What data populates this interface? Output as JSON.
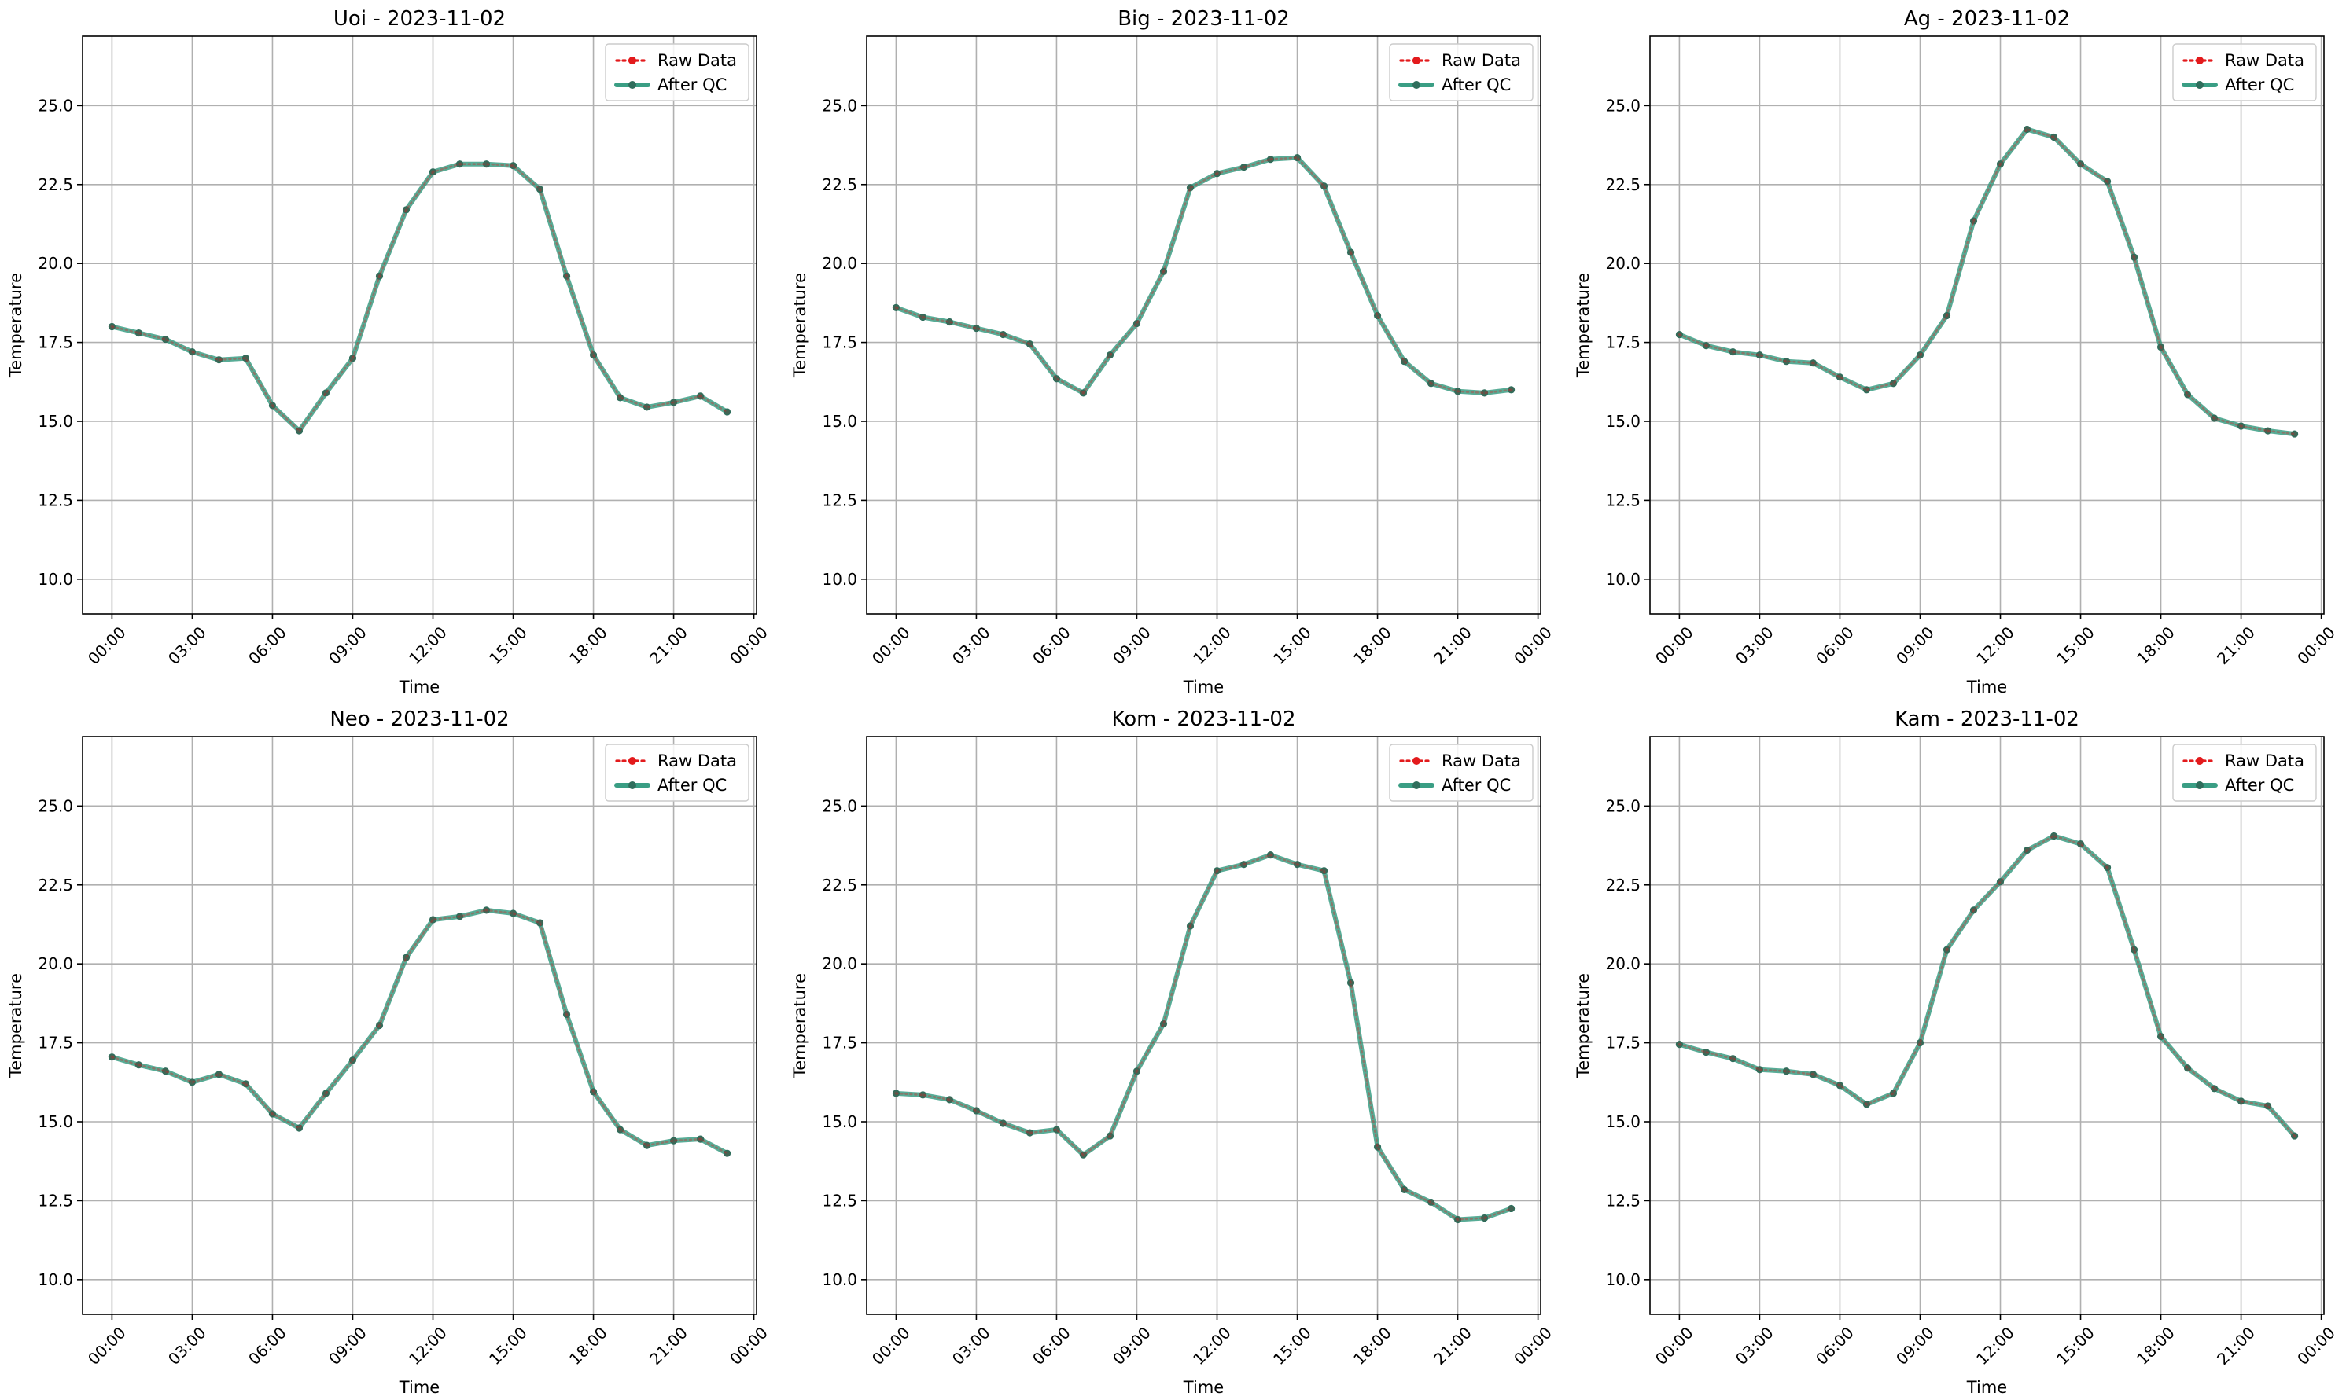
{
  "colors": {
    "raw": "#e31a1c",
    "qc": "#3a9e84",
    "qc_marker": "#2f6e5c",
    "grid": "#b0b0b0",
    "axis": "#000000"
  },
  "chart_data": [
    {
      "type": "line",
      "title": "Uoi - 2023-11-02",
      "xlabel": "Time",
      "ylabel": "Temperature",
      "x_unit": "hour",
      "xlim": [
        -1.1,
        24.1
      ],
      "ylim": [
        8.9,
        27.2
      ],
      "grid": true,
      "legend": "top-right",
      "x_ticks": [
        0,
        3,
        6,
        9,
        12,
        15,
        18,
        21,
        24
      ],
      "x_tick_labels": [
        "00:00",
        "03:00",
        "06:00",
        "09:00",
        "12:00",
        "15:00",
        "18:00",
        "21:00",
        "00:00"
      ],
      "y_ticks": [
        10.0,
        12.5,
        15.0,
        17.5,
        20.0,
        22.5,
        25.0
      ],
      "y_tick_labels": [
        "10.0",
        "12.5",
        "15.0",
        "17.5",
        "20.0",
        "22.5",
        "25.0"
      ],
      "x": [
        0,
        1,
        2,
        3,
        4,
        5,
        6,
        7,
        8,
        9,
        10,
        11,
        12,
        13,
        14,
        15,
        16,
        17,
        18,
        19,
        20,
        21,
        22,
        23
      ],
      "series": [
        {
          "name": "Raw Data",
          "style": "dotted",
          "values": [
            18.0,
            17.8,
            17.6,
            17.2,
            16.95,
            17.0,
            15.5,
            14.7,
            15.9,
            17.0,
            19.6,
            21.7,
            22.9,
            23.15,
            23.15,
            23.1,
            22.35,
            19.6,
            17.1,
            15.75,
            15.45,
            15.6,
            15.8,
            15.3
          ]
        },
        {
          "name": "After QC",
          "style": "solid",
          "values": [
            18.0,
            17.8,
            17.6,
            17.2,
            16.95,
            17.0,
            15.5,
            14.7,
            15.9,
            17.0,
            19.6,
            21.7,
            22.9,
            23.15,
            23.15,
            23.1,
            22.35,
            19.6,
            17.1,
            15.75,
            15.45,
            15.6,
            15.8,
            15.3
          ]
        }
      ]
    },
    {
      "type": "line",
      "title": "Big - 2023-11-02",
      "xlabel": "Time",
      "ylabel": "Temperature",
      "x_unit": "hour",
      "xlim": [
        -1.1,
        24.1
      ],
      "ylim": [
        8.9,
        27.2
      ],
      "grid": true,
      "legend": "top-right",
      "x_ticks": [
        0,
        3,
        6,
        9,
        12,
        15,
        18,
        21,
        24
      ],
      "x_tick_labels": [
        "00:00",
        "03:00",
        "06:00",
        "09:00",
        "12:00",
        "15:00",
        "18:00",
        "21:00",
        "00:00"
      ],
      "y_ticks": [
        10.0,
        12.5,
        15.0,
        17.5,
        20.0,
        22.5,
        25.0
      ],
      "y_tick_labels": [
        "10.0",
        "12.5",
        "15.0",
        "17.5",
        "20.0",
        "22.5",
        "25.0"
      ],
      "x": [
        0,
        1,
        2,
        3,
        4,
        5,
        6,
        7,
        8,
        9,
        10,
        11,
        12,
        13,
        14,
        15,
        16,
        17,
        18,
        19,
        20,
        21,
        22,
        23
      ],
      "series": [
        {
          "name": "Raw Data",
          "style": "dotted",
          "values": [
            18.6,
            18.3,
            18.15,
            17.95,
            17.75,
            17.45,
            16.35,
            15.9,
            17.1,
            18.1,
            19.75,
            22.4,
            22.85,
            23.05,
            23.3,
            23.35,
            22.45,
            20.35,
            18.35,
            16.9,
            16.2,
            15.95,
            15.9,
            16.0
          ]
        },
        {
          "name": "After QC",
          "style": "solid",
          "values": [
            18.6,
            18.3,
            18.15,
            17.95,
            17.75,
            17.45,
            16.35,
            15.9,
            17.1,
            18.1,
            19.75,
            22.4,
            22.85,
            23.05,
            23.3,
            23.35,
            22.45,
            20.35,
            18.35,
            16.9,
            16.2,
            15.95,
            15.9,
            16.0
          ]
        }
      ]
    },
    {
      "type": "line",
      "title": "Ag - 2023-11-02",
      "xlabel": "Time",
      "ylabel": "Temperature",
      "x_unit": "hour",
      "xlim": [
        -1.1,
        24.1
      ],
      "ylim": [
        8.9,
        27.2
      ],
      "grid": true,
      "legend": "top-right",
      "x_ticks": [
        0,
        3,
        6,
        9,
        12,
        15,
        18,
        21,
        24
      ],
      "x_tick_labels": [
        "00:00",
        "03:00",
        "06:00",
        "09:00",
        "12:00",
        "15:00",
        "18:00",
        "21:00",
        "00:00"
      ],
      "y_ticks": [
        10.0,
        12.5,
        15.0,
        17.5,
        20.0,
        22.5,
        25.0
      ],
      "y_tick_labels": [
        "10.0",
        "12.5",
        "15.0",
        "17.5",
        "20.0",
        "22.5",
        "25.0"
      ],
      "x": [
        0,
        1,
        2,
        3,
        4,
        5,
        6,
        7,
        8,
        9,
        10,
        11,
        12,
        13,
        14,
        15,
        16,
        17,
        18,
        19,
        20,
        21,
        22,
        23
      ],
      "series": [
        {
          "name": "Raw Data",
          "style": "dotted",
          "values": [
            17.75,
            17.4,
            17.2,
            17.1,
            16.9,
            16.85,
            16.4,
            16.0,
            16.2,
            17.1,
            18.35,
            21.35,
            23.15,
            24.25,
            24.0,
            23.15,
            22.6,
            20.2,
            17.35,
            15.85,
            15.1,
            14.85,
            14.7,
            14.6
          ]
        },
        {
          "name": "After QC",
          "style": "solid",
          "values": [
            17.75,
            17.4,
            17.2,
            17.1,
            16.9,
            16.85,
            16.4,
            16.0,
            16.2,
            17.1,
            18.35,
            21.35,
            23.15,
            24.25,
            24.0,
            23.15,
            22.6,
            20.2,
            17.35,
            15.85,
            15.1,
            14.85,
            14.7,
            14.6
          ]
        }
      ]
    },
    {
      "type": "line",
      "title": "Neo - 2023-11-02",
      "xlabel": "Time",
      "ylabel": "Temperature",
      "x_unit": "hour",
      "xlim": [
        -1.1,
        24.1
      ],
      "ylim": [
        8.9,
        27.2
      ],
      "grid": true,
      "legend": "top-right",
      "x_ticks": [
        0,
        3,
        6,
        9,
        12,
        15,
        18,
        21,
        24
      ],
      "x_tick_labels": [
        "00:00",
        "03:00",
        "06:00",
        "09:00",
        "12:00",
        "15:00",
        "18:00",
        "21:00",
        "00:00"
      ],
      "y_ticks": [
        10.0,
        12.5,
        15.0,
        17.5,
        20.0,
        22.5,
        25.0
      ],
      "y_tick_labels": [
        "10.0",
        "12.5",
        "15.0",
        "17.5",
        "20.0",
        "22.5",
        "25.0"
      ],
      "x": [
        0,
        1,
        2,
        3,
        4,
        5,
        6,
        7,
        8,
        9,
        10,
        11,
        12,
        13,
        14,
        15,
        16,
        17,
        18,
        19,
        20,
        21,
        22,
        23
      ],
      "series": [
        {
          "name": "Raw Data",
          "style": "dotted",
          "values": [
            17.05,
            16.8,
            16.6,
            16.25,
            16.5,
            16.2,
            15.25,
            14.8,
            15.9,
            16.95,
            18.05,
            20.2,
            21.4,
            21.5,
            21.7,
            21.6,
            21.3,
            18.4,
            15.95,
            14.75,
            14.25,
            14.4,
            14.45,
            14.0
          ]
        },
        {
          "name": "After QC",
          "style": "solid",
          "values": [
            17.05,
            16.8,
            16.6,
            16.25,
            16.5,
            16.2,
            15.25,
            14.8,
            15.9,
            16.95,
            18.05,
            20.2,
            21.4,
            21.5,
            21.7,
            21.6,
            21.3,
            18.4,
            15.95,
            14.75,
            14.25,
            14.4,
            14.45,
            14.0
          ]
        }
      ]
    },
    {
      "type": "line",
      "title": "Kom - 2023-11-02",
      "xlabel": "Time",
      "ylabel": "Temperature",
      "x_unit": "hour",
      "xlim": [
        -1.1,
        24.1
      ],
      "ylim": [
        8.9,
        27.2
      ],
      "grid": true,
      "legend": "top-right",
      "x_ticks": [
        0,
        3,
        6,
        9,
        12,
        15,
        18,
        21,
        24
      ],
      "x_tick_labels": [
        "00:00",
        "03:00",
        "06:00",
        "09:00",
        "12:00",
        "15:00",
        "18:00",
        "21:00",
        "00:00"
      ],
      "y_ticks": [
        10.0,
        12.5,
        15.0,
        17.5,
        20.0,
        22.5,
        25.0
      ],
      "y_tick_labels": [
        "10.0",
        "12.5",
        "15.0",
        "17.5",
        "20.0",
        "22.5",
        "25.0"
      ],
      "x": [
        0,
        1,
        2,
        3,
        4,
        5,
        6,
        7,
        8,
        9,
        10,
        11,
        12,
        13,
        14,
        15,
        16,
        17,
        18,
        19,
        20,
        21,
        22,
        23
      ],
      "series": [
        {
          "name": "Raw Data",
          "style": "dotted",
          "values": [
            15.9,
            15.85,
            15.7,
            15.35,
            14.95,
            14.65,
            14.75,
            13.95,
            14.55,
            16.6,
            18.1,
            21.2,
            22.95,
            23.15,
            23.45,
            23.15,
            22.95,
            19.4,
            14.2,
            12.85,
            12.45,
            11.9,
            11.95,
            12.25
          ]
        },
        {
          "name": "After QC",
          "style": "solid",
          "values": [
            15.9,
            15.85,
            15.7,
            15.35,
            14.95,
            14.65,
            14.75,
            13.95,
            14.55,
            16.6,
            18.1,
            21.2,
            22.95,
            23.15,
            23.45,
            23.15,
            22.95,
            19.4,
            14.2,
            12.85,
            12.45,
            11.9,
            11.95,
            12.25
          ]
        }
      ]
    },
    {
      "type": "line",
      "title": "Kam - 2023-11-02",
      "xlabel": "Time",
      "ylabel": "Temperature",
      "x_unit": "hour",
      "xlim": [
        -1.1,
        24.1
      ],
      "ylim": [
        8.9,
        27.2
      ],
      "grid": true,
      "legend": "top-right",
      "x_ticks": [
        0,
        3,
        6,
        9,
        12,
        15,
        18,
        21,
        24
      ],
      "x_tick_labels": [
        "00:00",
        "03:00",
        "06:00",
        "09:00",
        "12:00",
        "15:00",
        "18:00",
        "21:00",
        "00:00"
      ],
      "y_ticks": [
        10.0,
        12.5,
        15.0,
        17.5,
        20.0,
        22.5,
        25.0
      ],
      "y_tick_labels": [
        "10.0",
        "12.5",
        "15.0",
        "17.5",
        "20.0",
        "22.5",
        "25.0"
      ],
      "x": [
        0,
        1,
        2,
        3,
        4,
        5,
        6,
        7,
        8,
        9,
        10,
        11,
        12,
        13,
        14,
        15,
        16,
        17,
        18,
        19,
        20,
        21,
        22,
        23
      ],
      "series": [
        {
          "name": "Raw Data",
          "style": "dotted",
          "values": [
            17.45,
            17.2,
            17.0,
            16.65,
            16.6,
            16.5,
            16.15,
            15.55,
            15.9,
            17.5,
            20.45,
            21.7,
            22.6,
            23.6,
            24.05,
            23.8,
            23.05,
            20.45,
            17.7,
            16.7,
            16.05,
            15.65,
            15.5,
            14.55
          ]
        },
        {
          "name": "After QC",
          "style": "solid",
          "values": [
            17.45,
            17.2,
            17.0,
            16.65,
            16.6,
            16.5,
            16.15,
            15.55,
            15.9,
            17.5,
            20.45,
            21.7,
            22.6,
            23.6,
            24.05,
            23.8,
            23.05,
            20.45,
            17.7,
            16.7,
            16.05,
            15.65,
            15.5,
            14.55
          ]
        }
      ]
    }
  ]
}
